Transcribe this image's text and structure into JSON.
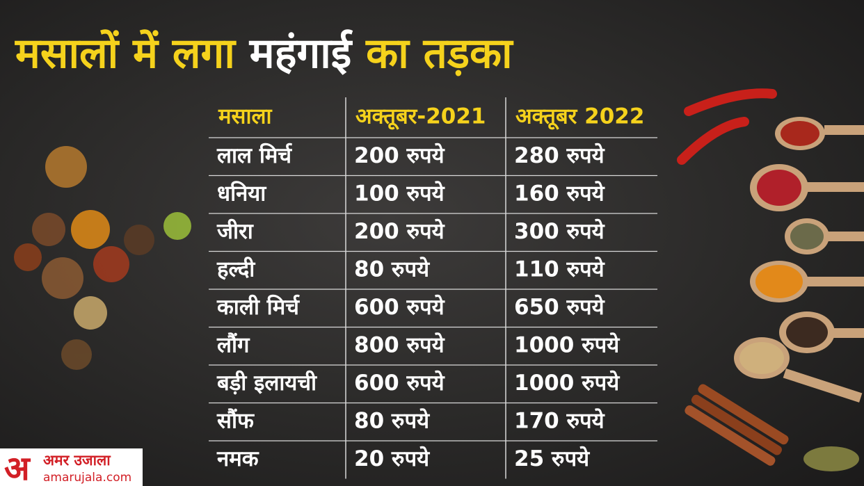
{
  "header": {
    "title_part1": "मसालों में लगा",
    "title_part2": "महंगाई",
    "title_part3": "का तड़का"
  },
  "table": {
    "columns": [
      "मसाला",
      "अक्तूबर-2021",
      "अक्तूबर 2022"
    ],
    "rows": [
      [
        "लाल मिर्च",
        "200 रुपये",
        "280 रुपये"
      ],
      [
        "धनिया",
        "100 रुपये",
        "160 रुपये"
      ],
      [
        "जीरा",
        "200 रुपये",
        "300 रुपये"
      ],
      [
        "हल्दी",
        "80 रुपये",
        "110 रुपये"
      ],
      [
        "काली मिर्च",
        "600 रुपये",
        "650 रुपये"
      ],
      [
        "लौंग",
        "800 रुपये",
        "1000 रुपये"
      ],
      [
        "बड़ी इलायची",
        "600 रुपये",
        "1000 रुपये"
      ],
      [
        "सौंफ",
        "80 रुपये",
        "170 रुपये"
      ],
      [
        "नमक",
        "20 रुपये",
        "25 रुपये"
      ]
    ]
  },
  "logo": {
    "mark": "अ",
    "name": "अमर उजाला",
    "url": "amarujala.com"
  }
}
